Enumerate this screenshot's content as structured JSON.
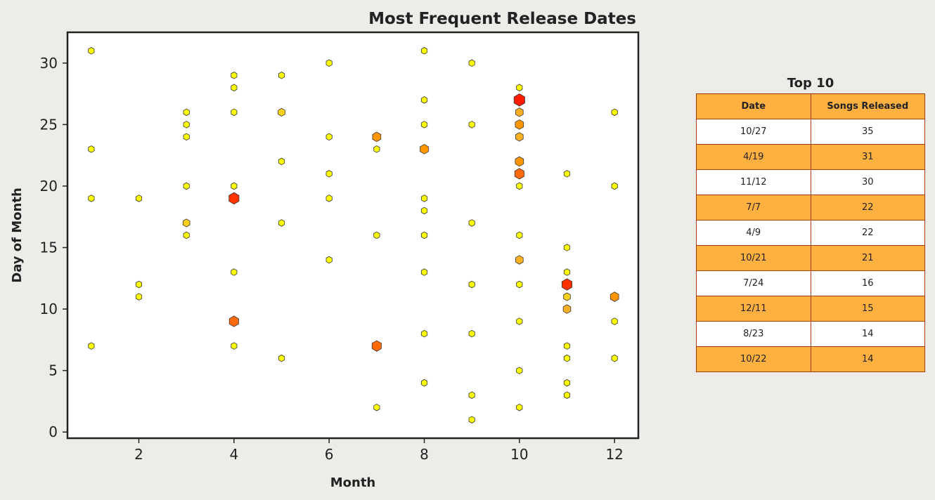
{
  "chart_data": {
    "type": "scatter",
    "title": "Most Frequent Release Dates",
    "xlabel": "Month",
    "ylabel": "Day of Month",
    "xlim": [
      0.5,
      12.5
    ],
    "ylim": [
      -0.5,
      32.5
    ],
    "xticks": [
      2,
      4,
      6,
      8,
      10,
      12
    ],
    "yticks": [
      0,
      5,
      10,
      15,
      20,
      25,
      30
    ],
    "grid": false,
    "marker": "hexagon",
    "encoding": "marker size and color scale with number of songs released on that date (yellow = few, orange = more, red = most)",
    "colors": {
      "low": "#ffff00",
      "mid": "#ff9500",
      "high": "#ff1a00"
    },
    "points": [
      {
        "x": 1,
        "y": 31,
        "level": 0
      },
      {
        "x": 1,
        "y": 23,
        "level": 0
      },
      {
        "x": 1,
        "y": 19,
        "level": 0
      },
      {
        "x": 1,
        "y": 7,
        "level": 0
      },
      {
        "x": 2,
        "y": 19,
        "level": 0
      },
      {
        "x": 2,
        "y": 12,
        "level": 0
      },
      {
        "x": 2,
        "y": 11,
        "level": 0
      },
      {
        "x": 3,
        "y": 26,
        "level": 0
      },
      {
        "x": 3,
        "y": 25,
        "level": 0
      },
      {
        "x": 3,
        "y": 24,
        "level": 0
      },
      {
        "x": 3,
        "y": 20,
        "level": 0
      },
      {
        "x": 3,
        "y": 17,
        "level": 1
      },
      {
        "x": 3,
        "y": 16,
        "level": 0
      },
      {
        "x": 4,
        "y": 29,
        "level": 0
      },
      {
        "x": 4,
        "y": 28,
        "level": 0
      },
      {
        "x": 4,
        "y": 26,
        "level": 0
      },
      {
        "x": 4,
        "y": 20,
        "level": 0
      },
      {
        "x": 4,
        "y": 19,
        "level": 5
      },
      {
        "x": 4,
        "y": 13,
        "level": 0
      },
      {
        "x": 4,
        "y": 9,
        "level": 4
      },
      {
        "x": 4,
        "y": 7,
        "level": 0
      },
      {
        "x": 5,
        "y": 29,
        "level": 0
      },
      {
        "x": 5,
        "y": 26,
        "level": 1
      },
      {
        "x": 5,
        "y": 22,
        "level": 0
      },
      {
        "x": 5,
        "y": 17,
        "level": 0
      },
      {
        "x": 5,
        "y": 6,
        "level": 0
      },
      {
        "x": 6,
        "y": 30,
        "level": 0
      },
      {
        "x": 6,
        "y": 24,
        "level": 0
      },
      {
        "x": 6,
        "y": 21,
        "level": 0
      },
      {
        "x": 6,
        "y": 19,
        "level": 0
      },
      {
        "x": 6,
        "y": 14,
        "level": 0
      },
      {
        "x": 7,
        "y": 24,
        "level": 3
      },
      {
        "x": 7,
        "y": 23,
        "level": 0
      },
      {
        "x": 7,
        "y": 16,
        "level": 0
      },
      {
        "x": 7,
        "y": 7,
        "level": 4
      },
      {
        "x": 7,
        "y": 2,
        "level": 0
      },
      {
        "x": 8,
        "y": 31,
        "level": 0
      },
      {
        "x": 8,
        "y": 27,
        "level": 0
      },
      {
        "x": 8,
        "y": 25,
        "level": 0
      },
      {
        "x": 8,
        "y": 23,
        "level": 3
      },
      {
        "x": 8,
        "y": 19,
        "level": 0
      },
      {
        "x": 8,
        "y": 18,
        "level": 0
      },
      {
        "x": 8,
        "y": 16,
        "level": 0
      },
      {
        "x": 8,
        "y": 13,
        "level": 0
      },
      {
        "x": 8,
        "y": 8,
        "level": 0
      },
      {
        "x": 8,
        "y": 4,
        "level": 0
      },
      {
        "x": 9,
        "y": 30,
        "level": 0
      },
      {
        "x": 9,
        "y": 25,
        "level": 0
      },
      {
        "x": 9,
        "y": 17,
        "level": 0
      },
      {
        "x": 9,
        "y": 12,
        "level": 0
      },
      {
        "x": 9,
        "y": 8,
        "level": 0
      },
      {
        "x": 9,
        "y": 3,
        "level": 0
      },
      {
        "x": 9,
        "y": 1,
        "level": 0
      },
      {
        "x": 10,
        "y": 28,
        "level": 0
      },
      {
        "x": 10,
        "y": 27,
        "level": 6
      },
      {
        "x": 10,
        "y": 26,
        "level": 2
      },
      {
        "x": 10,
        "y": 25,
        "level": 3
      },
      {
        "x": 10,
        "y": 24,
        "level": 2
      },
      {
        "x": 10,
        "y": 22,
        "level": 3
      },
      {
        "x": 10,
        "y": 21,
        "level": 4
      },
      {
        "x": 10,
        "y": 20,
        "level": 0
      },
      {
        "x": 10,
        "y": 16,
        "level": 0
      },
      {
        "x": 10,
        "y": 14,
        "level": 2
      },
      {
        "x": 10,
        "y": 12,
        "level": 0
      },
      {
        "x": 10,
        "y": 9,
        "level": 0
      },
      {
        "x": 10,
        "y": 5,
        "level": 0
      },
      {
        "x": 10,
        "y": 2,
        "level": 0
      },
      {
        "x": 11,
        "y": 21,
        "level": 0
      },
      {
        "x": 11,
        "y": 15,
        "level": 0
      },
      {
        "x": 11,
        "y": 13,
        "level": 0
      },
      {
        "x": 11,
        "y": 12,
        "level": 5
      },
      {
        "x": 11,
        "y": 11,
        "level": 1
      },
      {
        "x": 11,
        "y": 10,
        "level": 2
      },
      {
        "x": 11,
        "y": 7,
        "level": 0
      },
      {
        "x": 11,
        "y": 6,
        "level": 0
      },
      {
        "x": 11,
        "y": 4,
        "level": 0
      },
      {
        "x": 11,
        "y": 3,
        "level": 0
      },
      {
        "x": 12,
        "y": 26,
        "level": 0
      },
      {
        "x": 12,
        "y": 20,
        "level": 0
      },
      {
        "x": 12,
        "y": 11,
        "level": 3
      },
      {
        "x": 12,
        "y": 9,
        "level": 0
      },
      {
        "x": 12,
        "y": 6,
        "level": 0
      }
    ]
  },
  "table": {
    "title": "Top 10",
    "headers": [
      "Date",
      "Songs Released"
    ],
    "rows": [
      [
        "10/27",
        "35"
      ],
      [
        "4/19",
        "31"
      ],
      [
        "11/12",
        "30"
      ],
      [
        "7/7",
        "22"
      ],
      [
        "4/9",
        "22"
      ],
      [
        "10/21",
        "21"
      ],
      [
        "7/24",
        "16"
      ],
      [
        "12/11",
        "15"
      ],
      [
        "8/23",
        "14"
      ],
      [
        "10/22",
        "14"
      ]
    ]
  }
}
